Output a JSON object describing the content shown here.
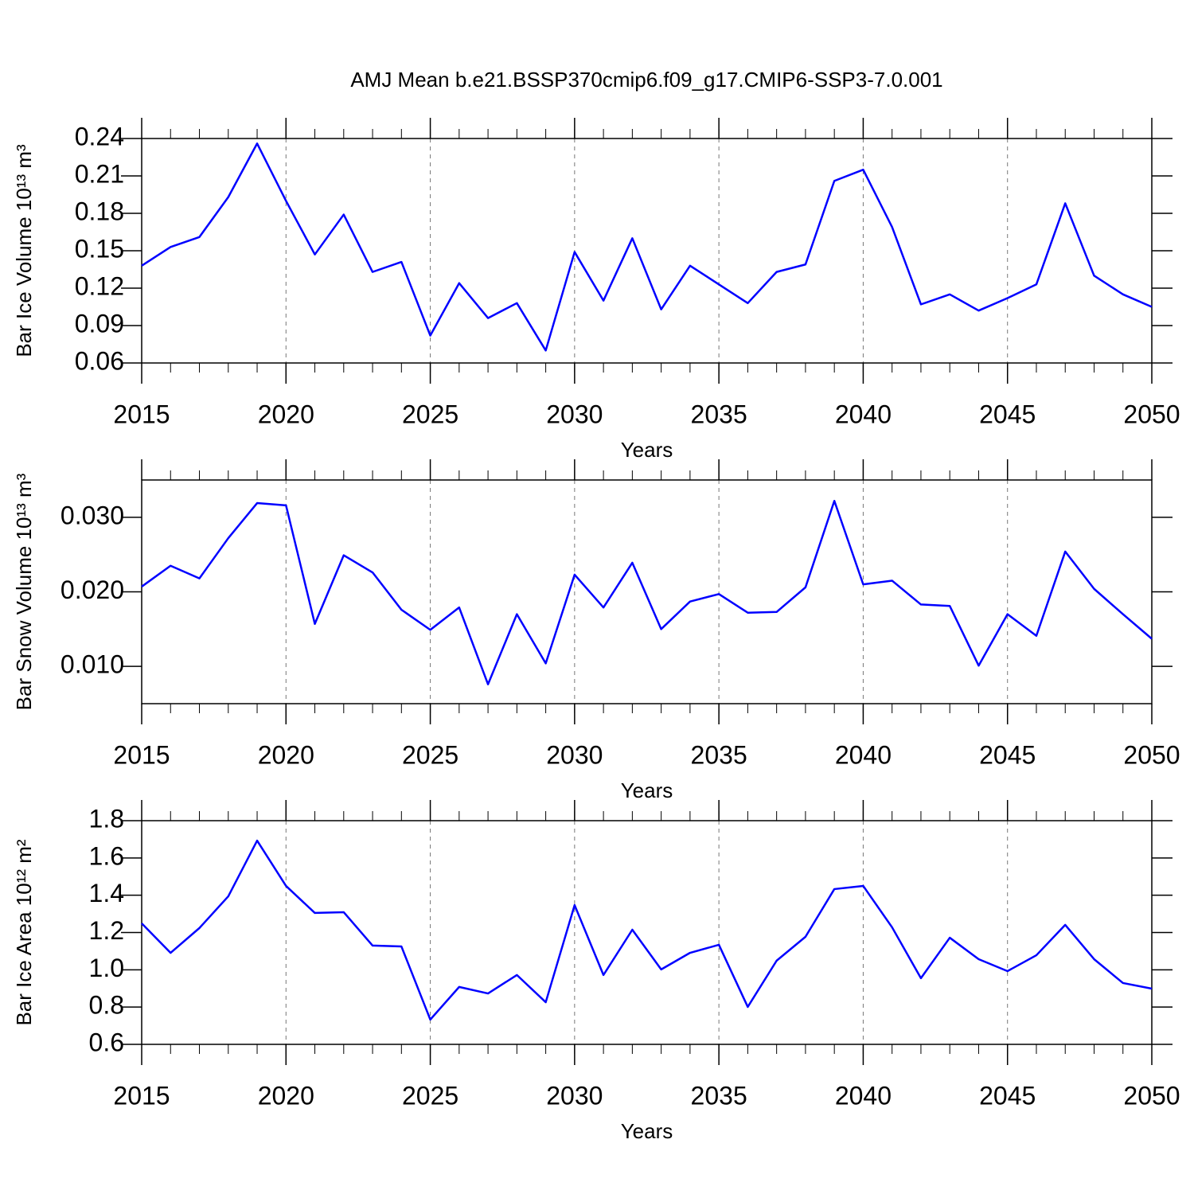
{
  "chart_data": [
    {
      "type": "line",
      "title": "AMJ Mean b.e21.BSSP370cmip6.f09_g17.CMIP6-SSP3-7.0.001",
      "x_label": "Years",
      "y_label": "Bar Ice Volume 10¹³ m³",
      "color": "#0000ff",
      "grid": "x",
      "x": [
        2015,
        2016,
        2017,
        2018,
        2019,
        2020,
        2021,
        2022,
        2023,
        2024,
        2025,
        2026,
        2027,
        2028,
        2029,
        2030,
        2031,
        2032,
        2033,
        2034,
        2035,
        2036,
        2037,
        2038,
        2039,
        2040,
        2041,
        2042,
        2043,
        2044,
        2045,
        2046,
        2047,
        2048,
        2049,
        2050
      ],
      "values": [
        0.138,
        0.153,
        0.161,
        0.193,
        0.236,
        0.19,
        0.147,
        0.179,
        0.133,
        0.141,
        0.082,
        0.124,
        0.096,
        0.108,
        0.07,
        0.149,
        0.11,
        0.16,
        0.103,
        0.138,
        0.123,
        0.108,
        0.133,
        0.139,
        0.206,
        0.215,
        0.169,
        0.107,
        0.115,
        0.102,
        0.112,
        0.123,
        0.188,
        0.13,
        0.115,
        0.105
      ],
      "xlim": [
        2015,
        2050
      ],
      "xticks": [
        2015,
        2020,
        2025,
        2030,
        2035,
        2040,
        2045,
        2050
      ],
      "ylim": [
        0.06,
        0.24
      ],
      "yticks": [
        0.06,
        0.09,
        0.12,
        0.15,
        0.18,
        0.21,
        0.24
      ]
    },
    {
      "type": "line",
      "x_label": "Years",
      "y_label": "Bar Snow Volume 10¹³ m³",
      "color": "#0000ff",
      "grid": "x",
      "x": [
        2015,
        2016,
        2017,
        2018,
        2019,
        2020,
        2021,
        2022,
        2023,
        2024,
        2025,
        2026,
        2027,
        2028,
        2029,
        2030,
        2031,
        2032,
        2033,
        2034,
        2035,
        2036,
        2037,
        2038,
        2039,
        2040,
        2041,
        2042,
        2043,
        2044,
        2045,
        2046,
        2047,
        2048,
        2049,
        2050
      ],
      "values": [
        0.0207,
        0.0235,
        0.0218,
        0.0272,
        0.0319,
        0.0316,
        0.0157,
        0.0249,
        0.0226,
        0.0176,
        0.0149,
        0.0179,
        0.0076,
        0.017,
        0.0104,
        0.0223,
        0.0179,
        0.0239,
        0.015,
        0.0187,
        0.0197,
        0.0172,
        0.0173,
        0.0206,
        0.0322,
        0.021,
        0.0215,
        0.0183,
        0.0181,
        0.0101,
        0.017,
        0.0141,
        0.0254,
        0.0204,
        0.017,
        0.0137
      ],
      "xlim": [
        2015,
        2050
      ],
      "xticks": [
        2015,
        2020,
        2025,
        2030,
        2035,
        2040,
        2045,
        2050
      ],
      "ylim": [
        0.005,
        0.035
      ],
      "yticks": [
        {
          "value": 0.01,
          "label": "0.010"
        },
        {
          "value": 0.02,
          "label": "0.020"
        },
        {
          "value": 0.03,
          "label": "0.030"
        }
      ]
    },
    {
      "type": "line",
      "x_label": "Years",
      "y_label": "Bar Ice Area 10¹² m²",
      "color": "#0000ff",
      "grid": "x",
      "x": [
        2015,
        2016,
        2017,
        2018,
        2019,
        2020,
        2021,
        2022,
        2023,
        2024,
        2025,
        2026,
        2027,
        2028,
        2029,
        2030,
        2031,
        2032,
        2033,
        2034,
        2035,
        2036,
        2037,
        2038,
        2039,
        2040,
        2041,
        2042,
        2043,
        2044,
        2045,
        2046,
        2047,
        2048,
        2049,
        2050
      ],
      "values": [
        1.249,
        1.091,
        1.224,
        1.394,
        1.693,
        1.45,
        1.305,
        1.309,
        1.13,
        1.125,
        0.733,
        0.908,
        0.873,
        0.972,
        0.826,
        1.347,
        0.972,
        1.215,
        1.002,
        1.091,
        1.134,
        0.801,
        1.049,
        1.177,
        1.433,
        1.45,
        1.228,
        0.955,
        1.172,
        1.057,
        0.993,
        1.078,
        1.241,
        1.057,
        0.929,
        0.899
      ],
      "xlim": [
        2015,
        2050
      ],
      "xticks": [
        2015,
        2020,
        2025,
        2030,
        2035,
        2040,
        2045,
        2050
      ],
      "ylim": [
        0.6,
        1.8
      ],
      "yticks": [
        0.6,
        0.8,
        {
          "value": 1,
          "label": "1.0"
        },
        1.2,
        1.4,
        1.6,
        1.8
      ]
    }
  ]
}
